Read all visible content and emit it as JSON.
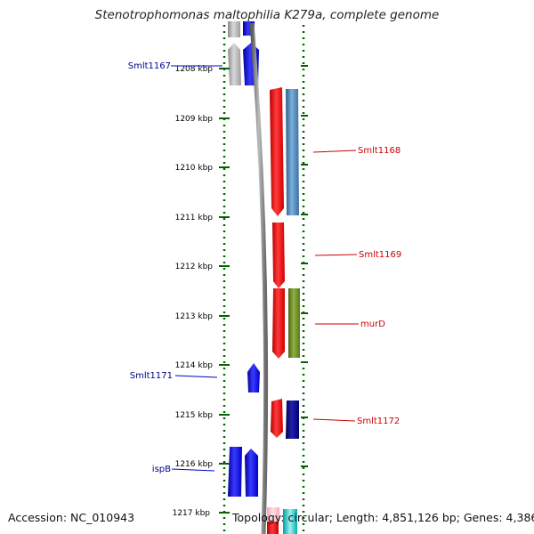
{
  "title": "Stenotrophomonas maltophilia K279a, complete genome",
  "footer": {
    "accession": "Accession: NC_010943",
    "summary": "Topology: circular; Length: 4,851,126 bp; Genes: 4,386"
  },
  "ticks": [
    {
      "label": "1208 kbp",
      "kbp": 1208
    },
    {
      "label": "1209 kbp",
      "kbp": 1209
    },
    {
      "label": "1210 kbp",
      "kbp": 1210
    },
    {
      "label": "1211 kbp",
      "kbp": 1211
    },
    {
      "label": "1212 kbp",
      "kbp": 1212
    },
    {
      "label": "1213 kbp",
      "kbp": 1213
    },
    {
      "label": "1214 kbp",
      "kbp": 1214
    },
    {
      "label": "1215 kbp",
      "kbp": 1215
    },
    {
      "label": "1216 kbp",
      "kbp": 1216
    },
    {
      "label": "1217 kbp",
      "kbp": 1217
    }
  ],
  "gene_labels_reverse": [
    {
      "text": "Smlt1167",
      "color": "#00008b"
    },
    {
      "text": "Smlt1171",
      "color": "#00008b"
    },
    {
      "text": "ispB",
      "color": "#00008b"
    }
  ],
  "gene_labels_forward": [
    {
      "text": "Smlt1168",
      "color": "#cc0000"
    },
    {
      "text": "Smlt1169",
      "color": "#cc0000"
    },
    {
      "text": "murD",
      "color": "#cc0000"
    },
    {
      "text": "Smlt1172",
      "color": "#cc0000"
    }
  ],
  "colors": {
    "reverse_gene": "#0000ff",
    "forward_gene": "#ff0000",
    "cog_gray": "#b0b0b0",
    "cog_steelblue": "#4682b4",
    "cog_olive": "#6b8e23",
    "cog_navy": "#000080",
    "backbone": "#808080",
    "scale_dots": "#006400",
    "pink": "#ffc0cb",
    "cyan": "#00ced1"
  }
}
